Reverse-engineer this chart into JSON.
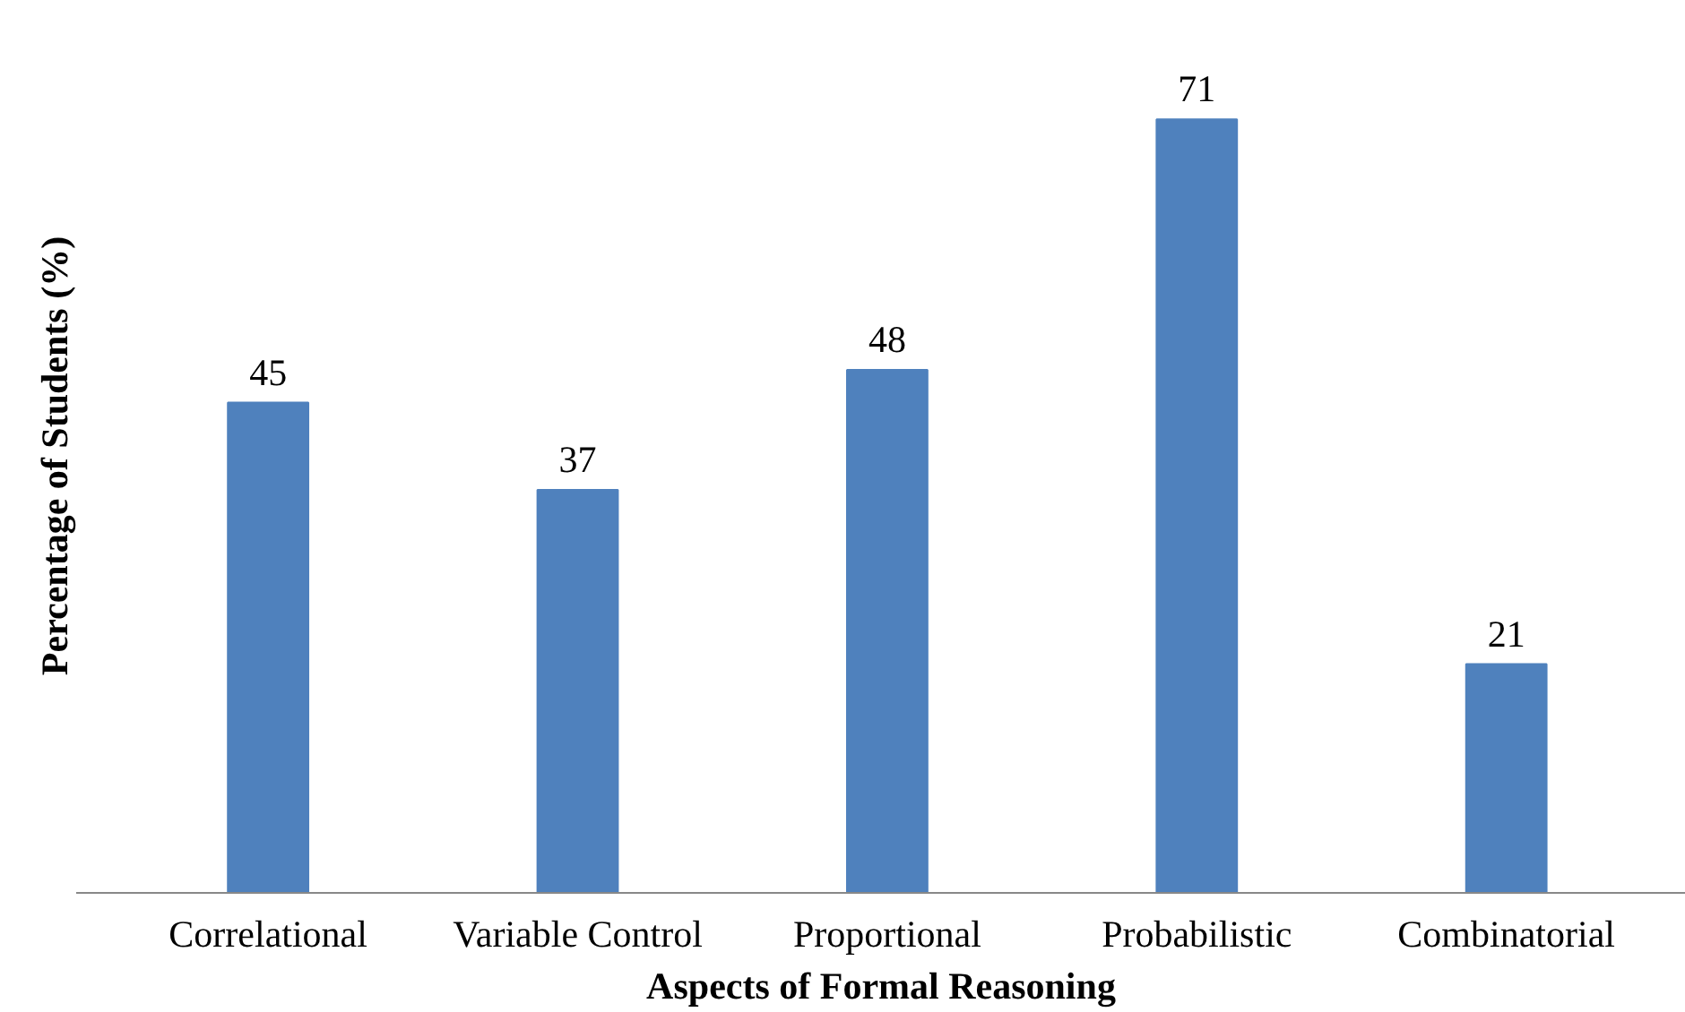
{
  "chart_data": {
    "type": "bar",
    "xlabel": "Aspects of Formal Reasoning",
    "ylabel": "Percentage of Students (%)",
    "categories": [
      "Correlational",
      "Variable Control",
      "Proportional",
      "Probabilistic",
      "Combinatorial"
    ],
    "values": [
      45,
      37,
      48,
      71,
      21
    ],
    "color": "#4f81bd",
    "data_labels": true,
    "grid": false
  }
}
